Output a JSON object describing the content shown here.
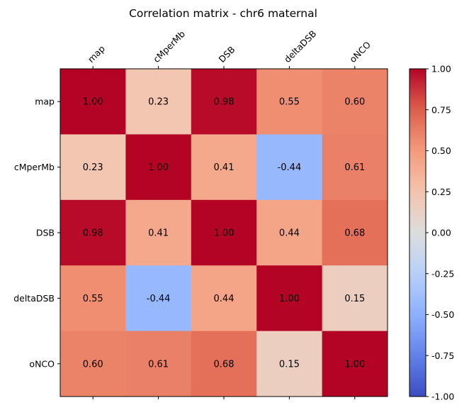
{
  "chart_data": {
    "type": "heatmap",
    "title": "Correlation matrix - chr6 maternal",
    "xlabels": [
      "map",
      "cMperMb",
      "DSB",
      "deltaDSB",
      "oNCO"
    ],
    "ylabels": [
      "map",
      "cMperMb",
      "DSB",
      "deltaDSB",
      "oNCO"
    ],
    "values": [
      [
        1.0,
        0.23,
        0.98,
        0.55,
        0.6
      ],
      [
        0.23,
        1.0,
        0.41,
        -0.44,
        0.61
      ],
      [
        0.98,
        0.41,
        1.0,
        0.44,
        0.68
      ],
      [
        0.55,
        -0.44,
        0.44,
        1.0,
        0.15
      ],
      [
        0.6,
        0.61,
        0.68,
        0.15,
        1.0
      ]
    ],
    "annotations": [
      [
        "1.00",
        "0.23",
        "0.98",
        "0.55",
        "0.60"
      ],
      [
        "0.23",
        "1.00",
        "0.41",
        "-0.44",
        "0.61"
      ],
      [
        "0.98",
        "0.41",
        "1.00",
        "0.44",
        "0.68"
      ],
      [
        "0.55",
        "-0.44",
        "0.44",
        "1.00",
        "0.15"
      ],
      [
        "0.60",
        "0.61",
        "0.68",
        "0.15",
        "1.00"
      ]
    ],
    "colormap": "coolwarm",
    "vmin": -1.0,
    "vmax": 1.0,
    "colorbar_ticks": [
      "1.00",
      "0.75",
      "0.50",
      "0.25",
      "0.00",
      "-0.25",
      "-0.50",
      "-0.75",
      "-1.00"
    ],
    "grid": false,
    "legend": "colorbar-right"
  }
}
